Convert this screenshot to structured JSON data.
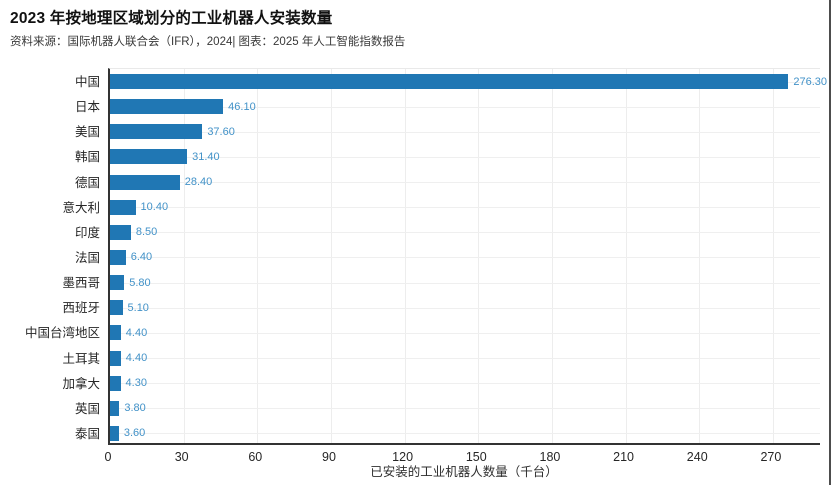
{
  "header": {
    "title": "2023 年按地理区域划分的工业机器人安装数量",
    "source_line": "资料来源：国际机器人联合会（IFR），2024| 图表：2025 年人工智能指数报告"
  },
  "chart_data": {
    "type": "bar",
    "orientation": "horizontal",
    "title": "2023 年按地理区域划分的工业机器人安装数量",
    "categories": [
      "中国",
      "日本",
      "美国",
      "韩国",
      "德国",
      "意大利",
      "印度",
      "法国",
      "墨西哥",
      "西班牙",
      "中国台湾地区",
      "土耳其",
      "加拿大",
      "英国",
      "泰国"
    ],
    "values": [
      276.3,
      46.1,
      37.6,
      31.4,
      28.4,
      10.4,
      8.5,
      6.4,
      5.8,
      5.1,
      4.4,
      4.4,
      4.3,
      3.8,
      3.6
    ],
    "value_labels": [
      "276.30",
      "46.10",
      "37.60",
      "31.40",
      "28.40",
      "10.40",
      "8.50",
      "6.40",
      "5.80",
      "5.10",
      "4.40",
      "4.40",
      "4.30",
      "3.80",
      "3.60"
    ],
    "xlabel": "已安装的工业机器人数量（千台）",
    "xticks": [
      0,
      30,
      60,
      90,
      120,
      150,
      180,
      210,
      240,
      270
    ],
    "xlim": [
      0,
      290
    ],
    "grid": true,
    "legend": "none",
    "colors": {
      "bar": "#2077B4",
      "value_label": "#4292C8",
      "axis_line": "#333333",
      "gridline": "#ededed"
    }
  }
}
